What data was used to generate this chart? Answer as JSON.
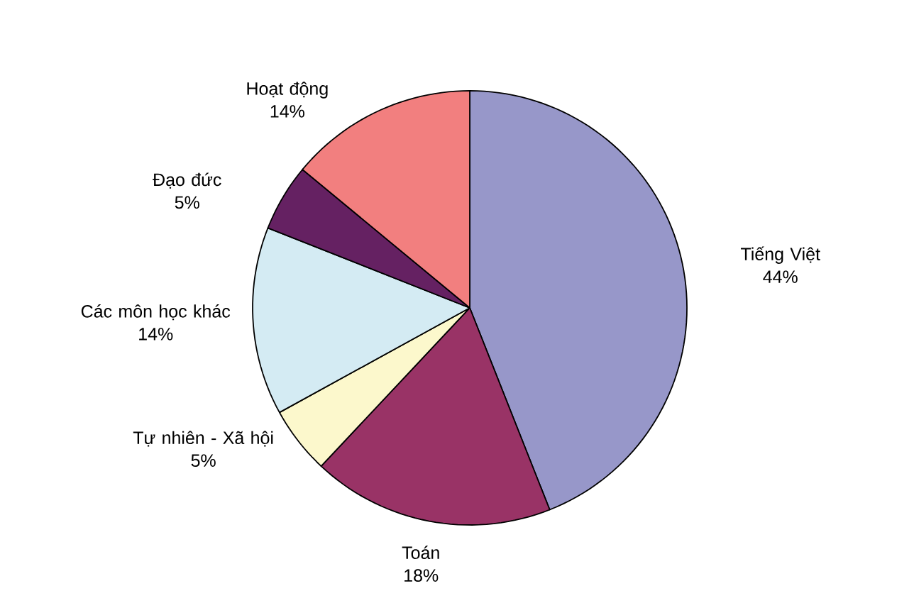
{
  "chart_data": {
    "type": "pie",
    "categories": [
      "Tiếng Việt",
      "Toán",
      "Tự nhiên - Xã hội",
      "Các môn học khác",
      "Đạo đức",
      "Hoạt động"
    ],
    "values": [
      44,
      18,
      5,
      14,
      5,
      14
    ],
    "value_labels": [
      "44%",
      "18%",
      "5%",
      "14%",
      "5%",
      "14%"
    ],
    "colors": [
      "#9797c9",
      "#993366",
      "#fcf8cc",
      "#d4ebf3",
      "#652162",
      "#f27f7f"
    ]
  }
}
